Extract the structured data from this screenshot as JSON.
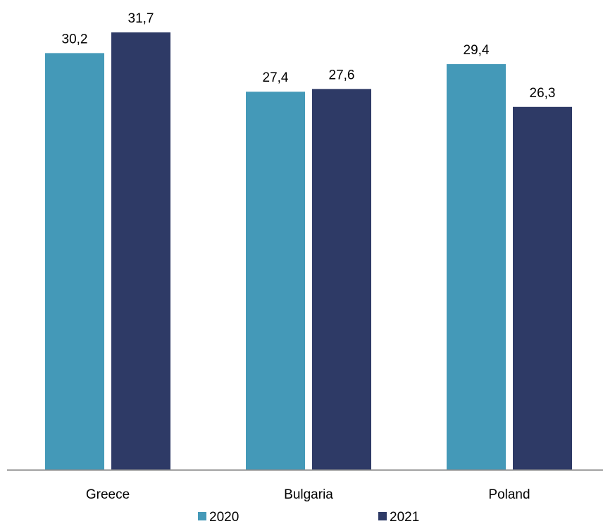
{
  "chart_data": {
    "type": "bar",
    "title": "",
    "xlabel": "",
    "ylabel": "",
    "categories": [
      "Greece",
      "Bulgaria",
      "Poland"
    ],
    "series": [
      {
        "name": "2020",
        "values": [
          30.2,
          27.4,
          29.4
        ],
        "labels": [
          "30,2",
          "27,4",
          "29,4"
        ],
        "color": "#4499b8"
      },
      {
        "name": "2021",
        "values": [
          31.7,
          27.6,
          26.3
        ],
        "labels": [
          "31,7",
          "27,6",
          "26,3"
        ],
        "color": "#2e3a66"
      }
    ],
    "ylim": [
      0,
      31.7
    ],
    "grid": false,
    "legend_position": "bottom",
    "axis_color": "#8c8c8c"
  }
}
